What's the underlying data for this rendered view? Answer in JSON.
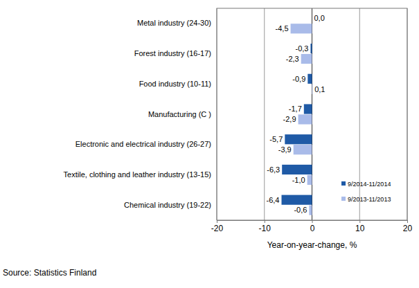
{
  "chart_data": {
    "type": "bar",
    "orientation": "horizontal",
    "categories": [
      "Metal industry (24-30)",
      "Forest industry (16-17)",
      "Food industry (10-11)",
      "Manufacturing (C )",
      "Electronic and electrical industry (26-27)",
      "Textile, clothing and leather industry (13-15)",
      "Chemical industry (19-22)"
    ],
    "series": [
      {
        "name": "9/2014-11/2014",
        "color": "#1f5aa6",
        "values": [
          0.0,
          -0.3,
          -0.9,
          -1.7,
          -5.7,
          -6.3,
          -6.4
        ],
        "value_labels": [
          "0,0",
          "-0,3",
          "-0,9",
          "-1,7",
          "-5,7",
          "-6,3",
          "-6,4"
        ]
      },
      {
        "name": "9/2013-11/2013",
        "color": "#a9bbe9",
        "values": [
          -4.5,
          -2.3,
          0.1,
          -2.9,
          -3.9,
          -1.0,
          -0.6
        ],
        "value_labels": [
          "-4,5",
          "-2,3",
          "0,1",
          "-2,9",
          "-3,9",
          "-1,0",
          "-0,6"
        ]
      }
    ],
    "xlim": [
      -20,
      20
    ],
    "xticks": [
      -20,
      -10,
      0,
      10,
      20
    ],
    "xlabel": "Year-on-year-change, %",
    "annotations": [
      "Source: Statistics Finland"
    ],
    "grid": true,
    "legend": "lower right",
    "data_labels": true
  }
}
